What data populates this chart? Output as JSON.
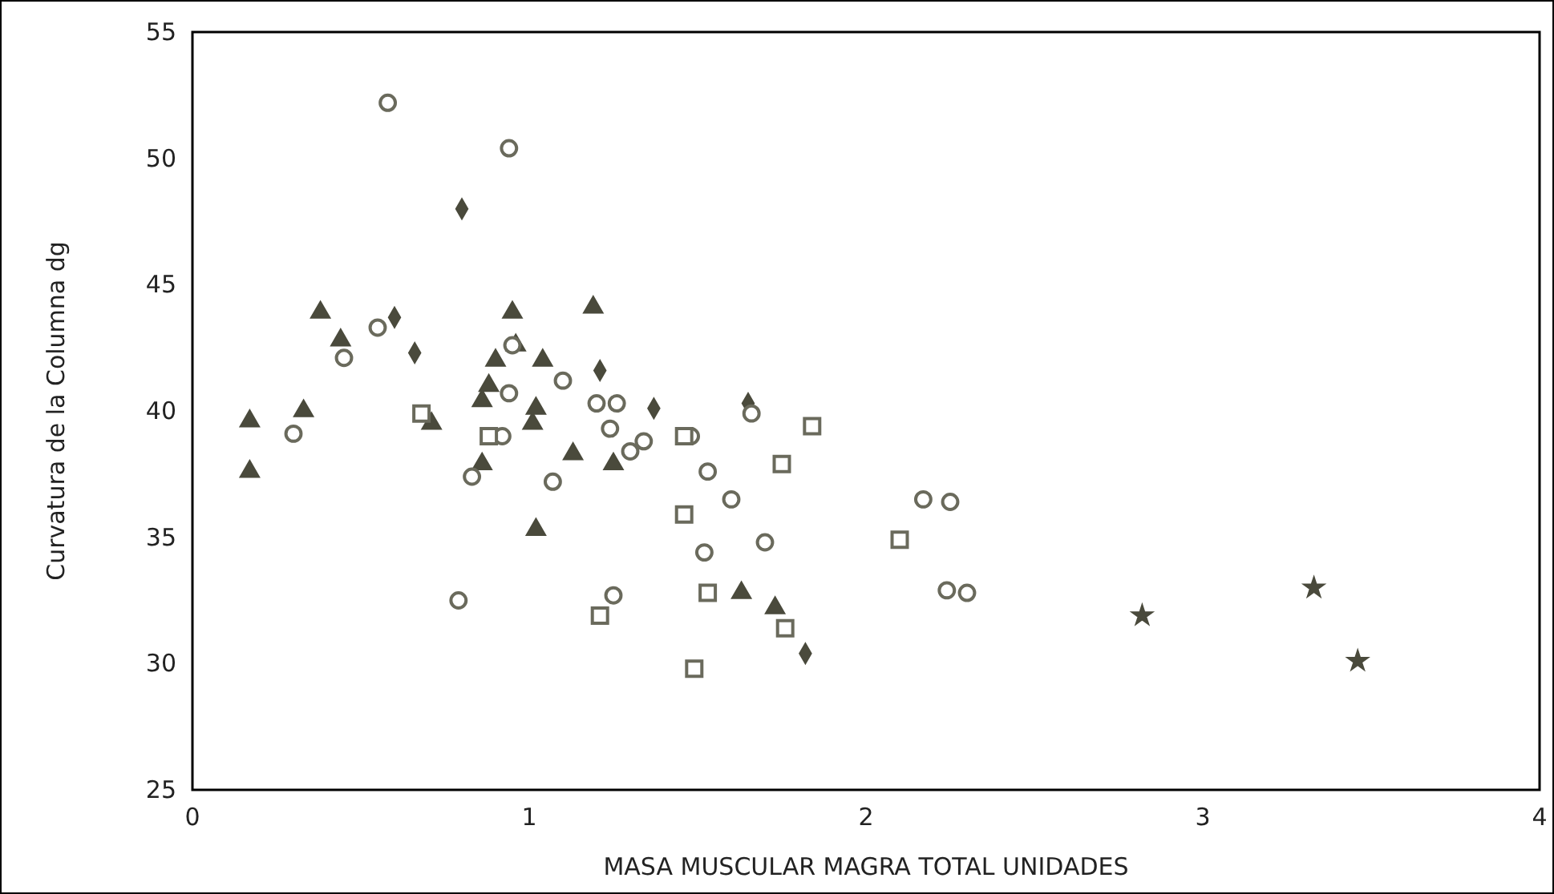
{
  "chart_data": {
    "type": "scatter",
    "xlabel": "MASA MUSCULAR MAGRA TOTAL UNIDADES",
    "ylabel": "Curvatura de la Columna dg",
    "xlim": [
      0,
      4
    ],
    "xticks": [
      0,
      1,
      2,
      3,
      4
    ],
    "ylim": [
      25,
      55
    ],
    "yticks": [
      25,
      30,
      35,
      40,
      45,
      50,
      55
    ],
    "grid": false,
    "series": [
      {
        "marker": "triangle",
        "color": "#4a4a3c",
        "x": [
          0.17,
          0.17,
          0.38,
          0.44,
          0.33,
          0.86,
          0.88,
          0.9,
          1.02,
          1.01,
          1.02,
          1.13,
          1.73,
          0.86,
          1.04,
          0.95,
          1.19,
          1.25,
          1.63,
          0.96,
          0.71
        ],
        "values": [
          39.6,
          37.6,
          43.9,
          42.8,
          40.0,
          40.4,
          41.0,
          42.0,
          40.1,
          39.5,
          35.3,
          38.3,
          32.2,
          37.9,
          42.0,
          43.9,
          44.1,
          37.9,
          32.8,
          42.6,
          39.5
        ]
      },
      {
        "marker": "diamond",
        "color": "#4a4a3c",
        "x": [
          0.8,
          0.6,
          0.66,
          1.21,
          1.37,
          1.82,
          1.65
        ],
        "values": [
          48.0,
          43.7,
          42.3,
          41.6,
          40.1,
          30.4,
          40.3
        ]
      },
      {
        "marker": "circle",
        "color": "#6a6a5c",
        "x": [
          0.58,
          0.45,
          0.3,
          0.79,
          1.52,
          1.7,
          0.83,
          0.55,
          0.94,
          0.95,
          0.94,
          1.1,
          0.92,
          1.07,
          1.2,
          1.26,
          1.24,
          1.34,
          1.25,
          1.48,
          1.53,
          1.6,
          2.17,
          2.25,
          2.24,
          2.3,
          1.3,
          1.66
        ],
        "values": [
          52.2,
          42.1,
          39.1,
          32.5,
          34.4,
          34.8,
          37.4,
          43.3,
          50.4,
          42.6,
          40.7,
          41.2,
          39.0,
          37.2,
          40.3,
          40.3,
          39.3,
          38.8,
          32.7,
          39.0,
          37.6,
          36.5,
          36.5,
          36.4,
          32.9,
          32.8,
          38.4,
          39.9
        ]
      },
      {
        "marker": "square",
        "color": "#6a6a5c",
        "x": [
          0.68,
          0.88,
          1.21,
          1.46,
          1.53,
          1.49,
          1.75,
          1.76,
          1.84,
          2.1,
          1.46
        ],
        "values": [
          39.9,
          39.0,
          31.9,
          35.9,
          32.8,
          29.8,
          37.9,
          31.4,
          39.4,
          34.9,
          39.0
        ]
      },
      {
        "marker": "star",
        "color": "#4a4a3c",
        "x": [
          2.82,
          3.33,
          3.46
        ],
        "values": [
          31.9,
          33.0,
          30.1
        ]
      }
    ]
  }
}
